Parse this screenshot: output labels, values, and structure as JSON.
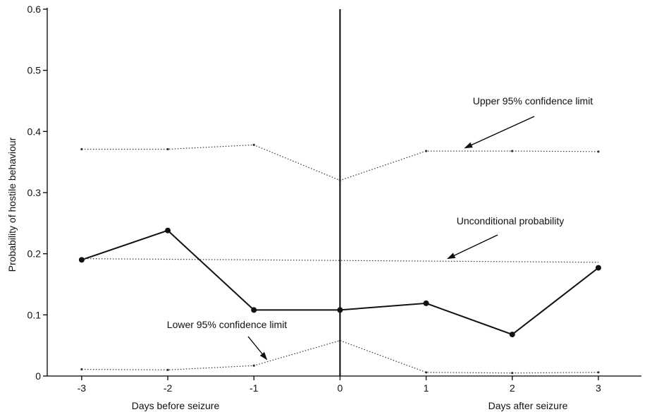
{
  "chart_data": {
    "type": "line",
    "xlabel_left": "Days before seizure",
    "xlabel_right": "Days after seizure",
    "ylabel": "Probability of hostile behaviour",
    "x": [
      -3,
      -2,
      -1,
      0,
      1,
      2,
      3
    ],
    "x_tick_labels": [
      "-3",
      "-2",
      "-1",
      "0",
      "1",
      "2",
      "3"
    ],
    "xlim": [
      -3.4,
      3.5
    ],
    "ylim": [
      0,
      0.6
    ],
    "y_ticks": [
      0,
      0.1,
      0.2,
      0.3,
      0.4,
      0.5,
      0.6
    ],
    "y_tick_labels": [
      "0",
      "0.1",
      "0.2",
      "0.3",
      "0.4",
      "0.5",
      "0.6"
    ],
    "series": [
      {
        "values": [
          0.19,
          0.238,
          0.108,
          0.108,
          0.119,
          0.068,
          0.177
        ],
        "style": "solid",
        "marker": "filled-circle",
        "color": "#111111"
      },
      {
        "values": [
          0.371,
          0.371,
          0.378,
          0.32,
          0.368,
          0.368,
          0.367
        ],
        "style": "dotted",
        "marker": "small-dot",
        "color": "#333333"
      },
      {
        "values": [
          0.011,
          0.01,
          0.017,
          0.058,
          0.006,
          0.005,
          0.006
        ],
        "style": "dotted",
        "marker": "small-dot",
        "color": "#333333"
      },
      {
        "values": [
          0.192,
          0.191,
          0.19,
          0.189,
          0.188,
          0.187,
          0.186
        ],
        "style": "dotted",
        "marker": "none",
        "color": "#333333"
      }
    ],
    "vertical_line_at_x": 0,
    "annotations": [
      {
        "text": "Upper 95% confidence limit",
        "target_x": 1.45,
        "target_y": 0.373
      },
      {
        "text": "Unconditional probability",
        "target_x": 1.25,
        "target_y": 0.192
      },
      {
        "text": "Lower 95% confidence limit",
        "target_x": -0.85,
        "target_y": 0.027
      }
    ],
    "grid": false,
    "legend": "none"
  }
}
